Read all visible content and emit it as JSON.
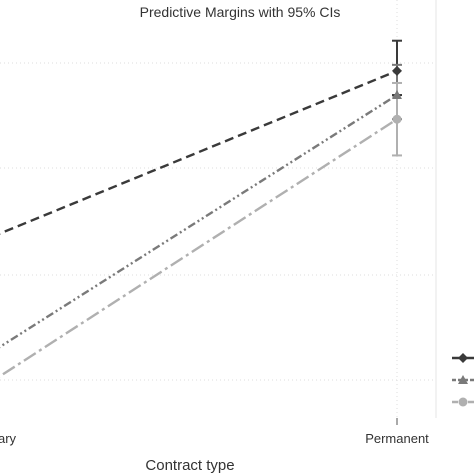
{
  "chart_data": {
    "type": "line",
    "title": "Predictive Margins with 95% CIs",
    "xlabel": "Contract type",
    "ylabel": "",
    "categories": [
      "Temporary",
      "Permanent"
    ],
    "category_labels_visible": [
      "ary",
      "Permanent"
    ],
    "grid": true,
    "legend_placement": "right",
    "ylim": [
      0.0,
      1.0
    ],
    "series": [
      {
        "values": [
          0.56,
          0.87
        ],
        "ci_low": [
          null,
          0.83
        ],
        "ci_high": [
          null,
          0.92
        ],
        "color": "#3a3a3a",
        "marker": "diamond",
        "dash": "dashed"
      },
      {
        "values": [
          0.35,
          0.83
        ],
        "ci_low": [
          null,
          0.79
        ],
        "ci_high": [
          null,
          0.88
        ],
        "color": "#7a7a7a",
        "marker": "triangle",
        "dash": "dash-dot-dot"
      },
      {
        "values": [
          0.3,
          0.79
        ],
        "ci_low": [
          null,
          0.73
        ],
        "ci_high": [
          null,
          0.85
        ],
        "color": "#b0b0b0",
        "marker": "circle",
        "dash": "long-dash-dot"
      }
    ]
  }
}
